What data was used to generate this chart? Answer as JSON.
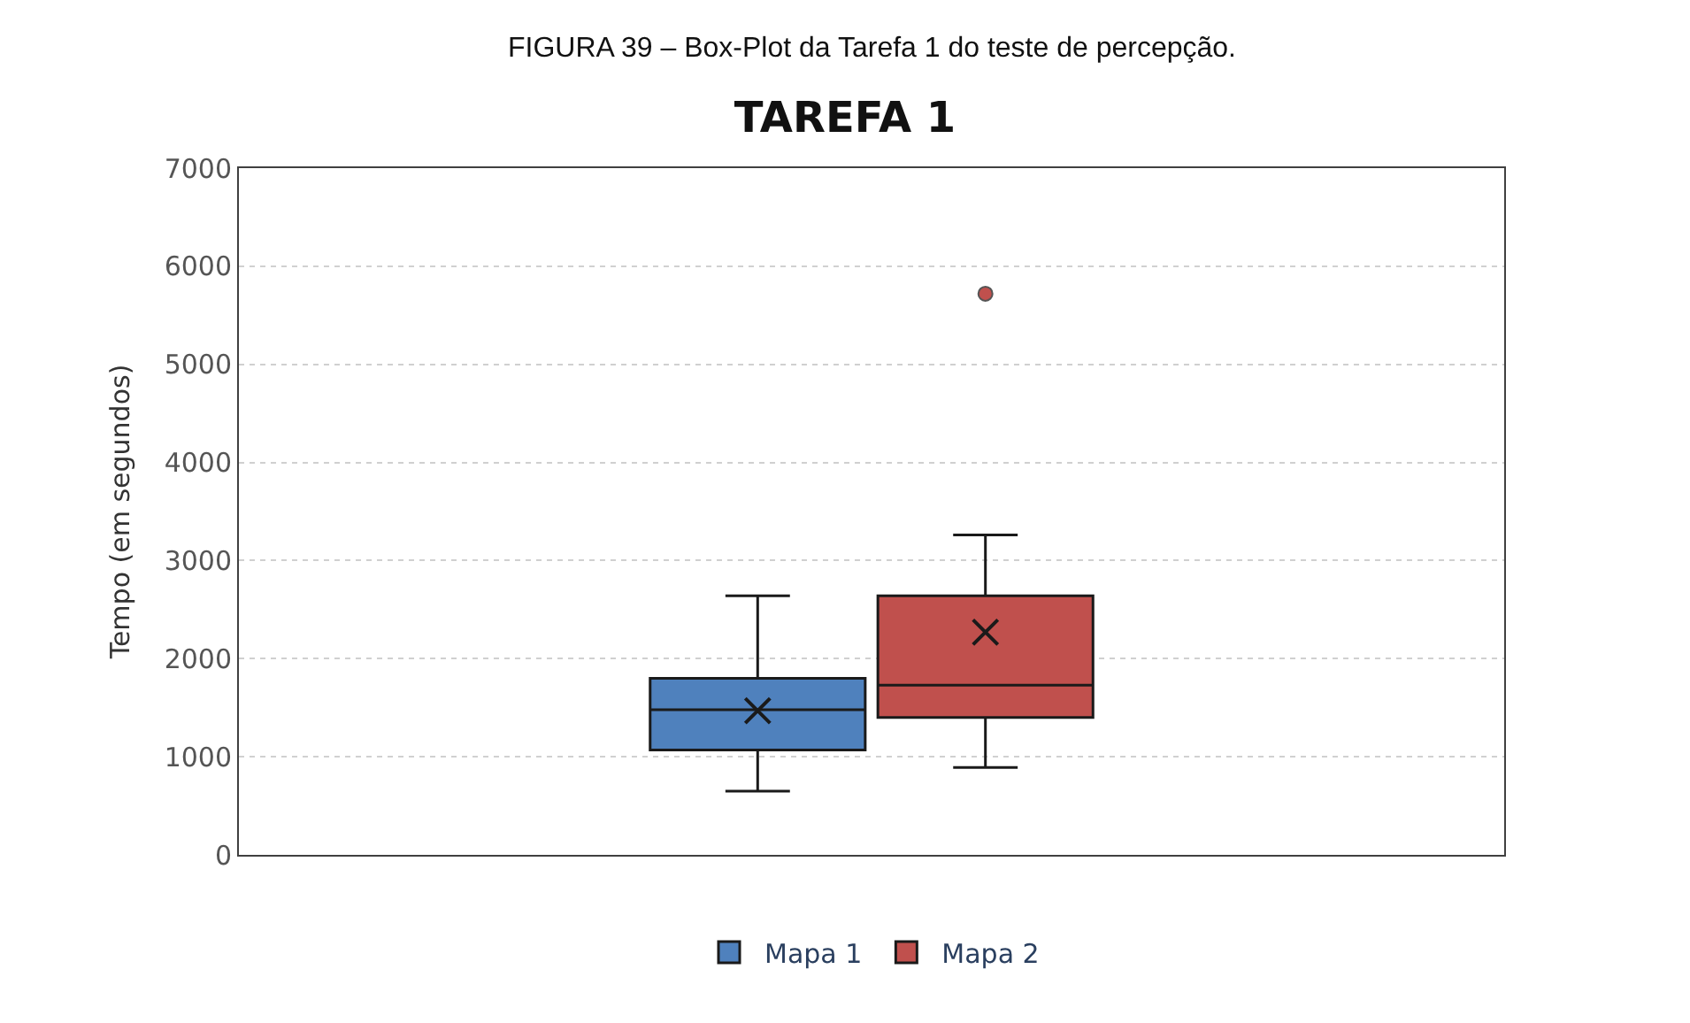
{
  "chart_data": {
    "type": "box",
    "title": "TAREFA 1",
    "annotations": [
      "FIGURA 39 – Box-Plot da Tarefa 1 do teste de percepção."
    ],
    "ylabel": "Tempo (em segundos)",
    "categories": [
      null
    ],
    "series": [
      {
        "name": "Mapa 1",
        "color": "#4f81bd",
        "boxes": [
          {
            "low": 650,
            "q1": 1070,
            "median": 1480,
            "q3": 1800,
            "high": 2640,
            "mean": 1470
          }
        ]
      },
      {
        "name": "Mapa 2",
        "color": "#c0504d",
        "boxes": [
          {
            "low": 890,
            "q1": 1400,
            "median": 1730,
            "q3": 2640,
            "high": 3260,
            "mean": 2270,
            "outliers": [
              5720
            ]
          }
        ]
      }
    ],
    "ylim": [
      0,
      7000
    ],
    "yticks": [
      0,
      1000,
      2000,
      3000,
      4000,
      5000,
      6000,
      7000
    ],
    "grid": "y",
    "legend": "bottom",
    "tick_labels": "y",
    "marker": "cross"
  }
}
